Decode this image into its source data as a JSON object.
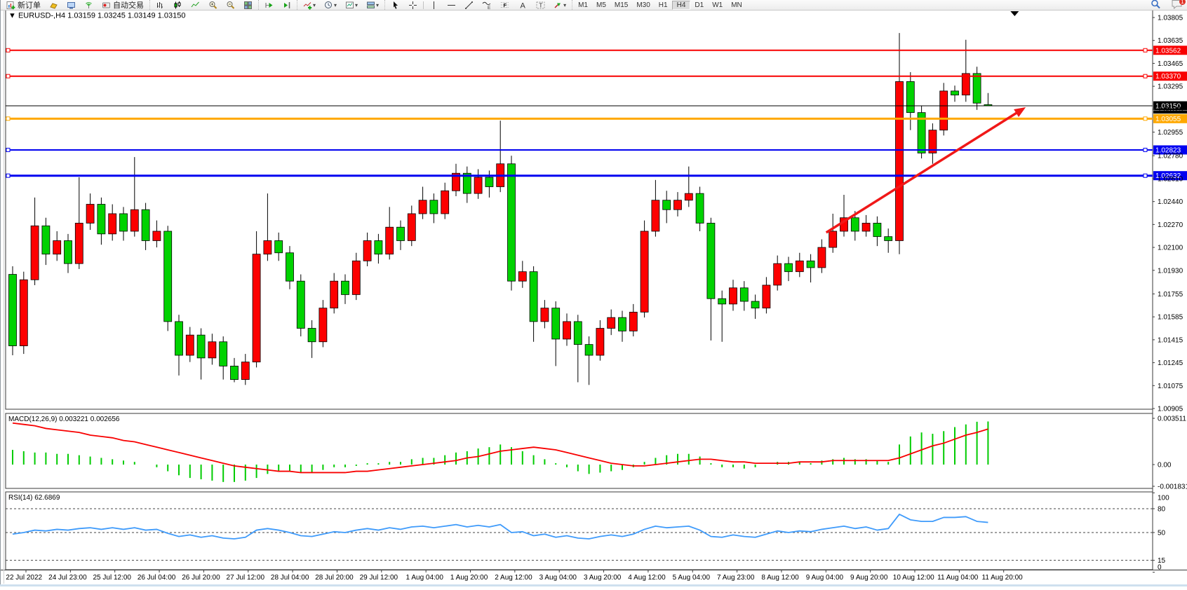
{
  "toolbar": {
    "new_order_label": "新订单",
    "autotrading_label": "自动交易",
    "timeframe_labels": [
      "M1",
      "M5",
      "M15",
      "M30",
      "H1",
      "H4",
      "D1",
      "W1",
      "MN"
    ],
    "active_timeframe": "H4",
    "chat_badge": "1",
    "icon_names": [
      "new-order",
      "gold",
      "chart-window",
      "signal",
      "autotrading",
      "bar-chart",
      "candle-chart",
      "line-chart",
      "zoom-in",
      "zoom-out",
      "tile-windows",
      "auto-scroll",
      "chart-shift",
      "add-indicator",
      "periods-clock",
      "templates",
      "profiles",
      "cursor",
      "crosshair",
      "vertical-line",
      "horizontal-line",
      "trendline",
      "fibonacci-wave",
      "fibonacci-retracement",
      "text",
      "text-label",
      "arrow-objects",
      "search",
      "chat"
    ]
  },
  "chart_data": {
    "type": "candlestick",
    "title": "EURUSD-,H4",
    "ohlc_line": "1.03159 1.03245 1.03149 1.03150",
    "bull_color": "#fd0000",
    "bear_color": "#00d200",
    "y_ticks": [
      "1.03805",
      "1.03635",
      "1.03465",
      "1.03295",
      "1.03125",
      "1.02955",
      "1.02780",
      "1.02610",
      "1.02440",
      "1.02270",
      "1.02100",
      "1.01930",
      "1.01755",
      "1.01585",
      "1.01415",
      "1.01245",
      "1.01075",
      "1.00905"
    ],
    "x_labels": [
      "22 Jul 2022",
      "24 Jul 23:00",
      "25 Jul 12:00",
      "26 Jul 04:00",
      "26 Jul 20:00",
      "27 Jul 12:00",
      "28 Jul 04:00",
      "28 Jul 20:00",
      "29 Jul 12:00",
      "1 Aug 04:00",
      "1 Aug 20:00",
      "2 Aug 12:00",
      "3 Aug 04:00",
      "3 Aug 20:00",
      "4 Aug 12:00",
      "5 Aug 04:00",
      "7 Aug 23:00",
      "8 Aug 12:00",
      "9 Aug 04:00",
      "9 Aug 20:00",
      "10 Aug 12:00",
      "11 Aug 04:00",
      "11 Aug 20:00"
    ],
    "candles": [
      [
        1.019,
        1.0196,
        1.013,
        1.0137
      ],
      [
        1.0137,
        1.0192,
        1.0131,
        1.0186
      ],
      [
        1.0186,
        1.0247,
        1.0182,
        1.0226
      ],
      [
        1.0226,
        1.0232,
        1.0197,
        1.0205
      ],
      [
        1.0205,
        1.0222,
        1.02,
        1.0215
      ],
      [
        1.0215,
        1.022,
        1.0191,
        1.0198
      ],
      [
        1.0198,
        1.0262,
        1.0194,
        1.0228
      ],
      [
        1.0228,
        1.025,
        1.0223,
        1.0242
      ],
      [
        1.0242,
        1.0247,
        1.0212,
        1.022
      ],
      [
        1.022,
        1.0242,
        1.0215,
        1.0235
      ],
      [
        1.0235,
        1.024,
        1.0215,
        1.0222
      ],
      [
        1.0222,
        1.0277,
        1.0218,
        1.0238
      ],
      [
        1.0238,
        1.0243,
        1.0208,
        1.0215
      ],
      [
        1.0215,
        1.023,
        1.021,
        1.0222
      ],
      [
        1.0222,
        1.0226,
        1.0148,
        1.0155
      ],
      [
        1.0155,
        1.016,
        1.0115,
        1.013
      ],
      [
        1.013,
        1.0151,
        1.0125,
        1.0145
      ],
      [
        1.0145,
        1.015,
        1.0112,
        1.0128
      ],
      [
        1.0128,
        1.0146,
        1.0123,
        1.014
      ],
      [
        1.014,
        1.0144,
        1.0112,
        1.0122
      ],
      [
        1.0122,
        1.0128,
        1.011,
        1.0112
      ],
      [
        1.0112,
        1.0131,
        1.0108,
        1.0125
      ],
      [
        1.0125,
        1.0222,
        1.0121,
        1.0205
      ],
      [
        1.0205,
        1.025,
        1.02,
        1.0215
      ],
      [
        1.0215,
        1.0221,
        1.02,
        1.0206
      ],
      [
        1.0206,
        1.0211,
        1.0179,
        1.0185
      ],
      [
        1.0185,
        1.019,
        1.0144,
        1.015
      ],
      [
        1.015,
        1.0156,
        1.0128,
        1.014
      ],
      [
        1.014,
        1.0171,
        1.0136,
        1.0165
      ],
      [
        1.0165,
        1.0191,
        1.0161,
        1.0185
      ],
      [
        1.0185,
        1.019,
        1.0168,
        1.0175
      ],
      [
        1.0175,
        1.0206,
        1.0171,
        1.02
      ],
      [
        1.02,
        1.0221,
        1.0196,
        1.0215
      ],
      [
        1.0215,
        1.022,
        1.0198,
        1.0205
      ],
      [
        1.0205,
        1.024,
        1.0201,
        1.0225
      ],
      [
        1.0225,
        1.023,
        1.0208,
        1.0215
      ],
      [
        1.0215,
        1.0241,
        1.0211,
        1.0235
      ],
      [
        1.0235,
        1.0255,
        1.0231,
        1.0245
      ],
      [
        1.0245,
        1.025,
        1.0228,
        1.0235
      ],
      [
        1.0235,
        1.0258,
        1.0231,
        1.0252
      ],
      [
        1.0252,
        1.0272,
        1.0248,
        1.0265
      ],
      [
        1.0265,
        1.027,
        1.0243,
        1.025
      ],
      [
        1.025,
        1.0268,
        1.0246,
        1.0262
      ],
      [
        1.0262,
        1.0267,
        1.0247,
        1.0255
      ],
      [
        1.0255,
        1.0304,
        1.0251,
        1.0272
      ],
      [
        1.0272,
        1.0278,
        1.0178,
        1.0185
      ],
      [
        1.0185,
        1.02,
        1.018,
        1.0192
      ],
      [
        1.0192,
        1.0196,
        1.014,
        1.0155
      ],
      [
        1.0155,
        1.0171,
        1.015,
        1.0165
      ],
      [
        1.0165,
        1.017,
        1.0122,
        1.0142
      ],
      [
        1.0142,
        1.0161,
        1.0137,
        1.0155
      ],
      [
        1.0155,
        1.016,
        1.011,
        1.0138
      ],
      [
        1.0138,
        1.0144,
        1.0108,
        1.013
      ],
      [
        1.013,
        1.0156,
        1.0126,
        1.015
      ],
      [
        1.015,
        1.0164,
        1.0145,
        1.0158
      ],
      [
        1.0158,
        1.0163,
        1.014,
        1.0148
      ],
      [
        1.0148,
        1.0168,
        1.0144,
        1.0162
      ],
      [
        1.0162,
        1.023,
        1.0158,
        1.0222
      ],
      [
        1.0222,
        1.026,
        1.0218,
        1.0245
      ],
      [
        1.0245,
        1.0252,
        1.0228,
        1.0238
      ],
      [
        1.0238,
        1.0251,
        1.0233,
        1.0245
      ],
      [
        1.0245,
        1.027,
        1.024,
        1.025
      ],
      [
        1.025,
        1.0255,
        1.0222,
        1.0228
      ],
      [
        1.0228,
        1.0232,
        1.0141,
        1.0172
      ],
      [
        1.0172,
        1.0178,
        1.014,
        1.0168
      ],
      [
        1.0168,
        1.0186,
        1.0163,
        1.018
      ],
      [
        1.018,
        1.0185,
        1.0163,
        1.017
      ],
      [
        1.017,
        1.0175,
        1.0157,
        1.0165
      ],
      [
        1.0165,
        1.0188,
        1.0161,
        1.0182
      ],
      [
        1.0182,
        1.0204,
        1.0178,
        1.0198
      ],
      [
        1.0198,
        1.0203,
        1.0185,
        1.0192
      ],
      [
        1.0192,
        1.0206,
        1.0188,
        1.02
      ],
      [
        1.02,
        1.0205,
        1.0184,
        1.0195
      ],
      [
        1.0195,
        1.0216,
        1.0191,
        1.021
      ],
      [
        1.021,
        1.0235,
        1.0206,
        1.0222
      ],
      [
        1.0222,
        1.0249,
        1.0218,
        1.0232
      ],
      [
        1.0232,
        1.0237,
        1.0215,
        1.0222
      ],
      [
        1.0222,
        1.0234,
        1.0218,
        1.0228
      ],
      [
        1.0228,
        1.0233,
        1.0211,
        1.0218
      ],
      [
        1.0218,
        1.0224,
        1.0206,
        1.0215
      ],
      [
        1.0215,
        1.0369,
        1.0205,
        1.0333
      ],
      [
        1.0333,
        1.034,
        1.0297,
        1.031
      ],
      [
        1.031,
        1.0315,
        1.0276,
        1.028
      ],
      [
        1.028,
        1.0302,
        1.0272,
        1.0297
      ],
      [
        1.0297,
        1.0332,
        1.0293,
        1.0326
      ],
      [
        1.0326,
        1.033,
        1.0318,
        1.0323
      ],
      [
        1.0323,
        1.0364,
        1.0318,
        1.0339
      ],
      [
        1.0339,
        1.0344,
        1.0312,
        1.0317
      ],
      [
        1.03159,
        1.03245,
        1.03149,
        1.0315
      ]
    ],
    "hlines": [
      {
        "price": 1.03562,
        "label": "1.03562",
        "color": "#f80000",
        "width": 2,
        "marker": true
      },
      {
        "price": 1.0337,
        "label": "1.03370",
        "color": "#f80000",
        "width": 2,
        "marker": true
      },
      {
        "price": 1.0315,
        "label": "1.03150",
        "color": "#000000",
        "width": 1,
        "marker": false
      },
      {
        "price": 1.03055,
        "label": "1.03055",
        "color": "#ffa800",
        "width": 3,
        "marker": true
      },
      {
        "price": 1.02823,
        "label": "1.02823",
        "color": "#0000f0",
        "width": 2,
        "marker": true
      },
      {
        "price": 1.02632,
        "label": "1.02632",
        "color": "#0000f0",
        "width": 3,
        "marker": true
      }
    ],
    "arrow": {
      "color": "#f01818",
      "from": {
        "bar": 73.4,
        "price": 1.0221
      },
      "to": {
        "bar": 91.4,
        "price": 1.0314
      }
    },
    "shift_marker_bar": 90.4,
    "macd": {
      "label": "MACD(12,26,9) 0.003221 0.002656",
      "main_value": 0.003221,
      "signal_value": 0.002656,
      "ticks": [
        "0.003511",
        "0.00",
        "-0.001831"
      ],
      "tick_values": [
        0.003511,
        0,
        -0.001831
      ],
      "histogram_color": "#00cc00",
      "signal_color": "#f80000",
      "histogram": [
        0.0011,
        0.001,
        0.0009,
        0.0009,
        0.0008,
        0.0008,
        0.0007,
        0.0006,
        0.0005,
        0.0004,
        0.0003,
        0.0002,
        0.0,
        -0.0002,
        -0.0005,
        -0.0008,
        -0.001,
        -0.0011,
        -0.0012,
        -0.0013,
        -0.0013,
        -0.0012,
        -0.001,
        -0.0007,
        -0.0005,
        -0.0005,
        -0.0006,
        -0.0006,
        -0.0004,
        -0.0002,
        -0.0002,
        -0.0001,
        0.0001,
        0.0001,
        0.0002,
        0.0002,
        0.0004,
        0.0005,
        0.0005,
        0.0007,
        0.0009,
        0.001,
        0.0012,
        0.0013,
        0.0015,
        0.0013,
        0.001,
        0.0007,
        0.0004,
        0.0001,
        -0.0002,
        -0.0005,
        -0.0007,
        -0.0006,
        -0.0005,
        -0.0004,
        -0.0002,
        0.0002,
        0.0005,
        0.0007,
        0.0008,
        0.0008,
        0.0006,
        0.0001,
        -0.0002,
        -0.0002,
        -0.0003,
        -0.0002,
        0.0,
        0.0002,
        0.0002,
        0.0002,
        0.0001,
        0.0003,
        0.0004,
        0.0005,
        0.0004,
        0.0004,
        0.0003,
        0.0002,
        0.0015,
        0.0021,
        0.0024,
        0.0023,
        0.0025,
        0.0028,
        0.003,
        0.0032,
        0.003221
      ],
      "signal": [
        0.0031,
        0.003,
        0.0029,
        0.0027,
        0.0026,
        0.0025,
        0.0024,
        0.0022,
        0.0021,
        0.002,
        0.0018,
        0.0017,
        0.0015,
        0.0013,
        0.0011,
        0.0009,
        0.0007,
        0.0005,
        0.0003,
        0.0001,
        -0.0001,
        -0.0002,
        -0.0003,
        -0.0004,
        -0.0005,
        -0.0005,
        -0.0006,
        -0.0006,
        -0.0006,
        -0.0006,
        -0.0006,
        -0.0005,
        -0.0005,
        -0.0004,
        -0.0003,
        -0.0002,
        -0.0001,
        0.0,
        0.0001,
        0.0002,
        0.0003,
        0.0005,
        0.0006,
        0.0008,
        0.001,
        0.0011,
        0.0012,
        0.0013,
        0.0012,
        0.0011,
        0.0009,
        0.0007,
        0.0005,
        0.0003,
        0.0001,
        0.0,
        -0.0001,
        -0.0001,
        0.0,
        0.0001,
        0.0002,
        0.0003,
        0.0004,
        0.0004,
        0.0003,
        0.0002,
        0.0002,
        0.0001,
        0.0001,
        0.0001,
        0.0001,
        0.0002,
        0.0002,
        0.0002,
        0.0003,
        0.0003,
        0.0003,
        0.0003,
        0.0003,
        0.0003,
        0.0005,
        0.0008,
        0.0011,
        0.0014,
        0.0016,
        0.0019,
        0.0022,
        0.0024,
        0.002656
      ]
    },
    "rsi": {
      "label": "RSI(14) 62.6869",
      "value": 62.6869,
      "ticks": [
        100,
        80,
        50,
        15,
        0
      ],
      "levels": [
        80,
        50,
        15
      ],
      "line_color": "#3f9bfb",
      "values": [
        48,
        50,
        53,
        52,
        54,
        53,
        55,
        56,
        54,
        56,
        54,
        56,
        53,
        54,
        49,
        45,
        47,
        44,
        46,
        43,
        42,
        44,
        53,
        55,
        53,
        50,
        46,
        45,
        48,
        51,
        50,
        53,
        55,
        53,
        56,
        54,
        57,
        58,
        56,
        58,
        60,
        57,
        59,
        57,
        60,
        50,
        51,
        46,
        48,
        44,
        46,
        43,
        42,
        45,
        47,
        45,
        48,
        54,
        58,
        56,
        57,
        58,
        53,
        45,
        44,
        47,
        45,
        44,
        48,
        52,
        50,
        52,
        51,
        54,
        56,
        58,
        55,
        57,
        53,
        55,
        73,
        66,
        64,
        64,
        69,
        69,
        70,
        64,
        62.69
      ]
    }
  }
}
